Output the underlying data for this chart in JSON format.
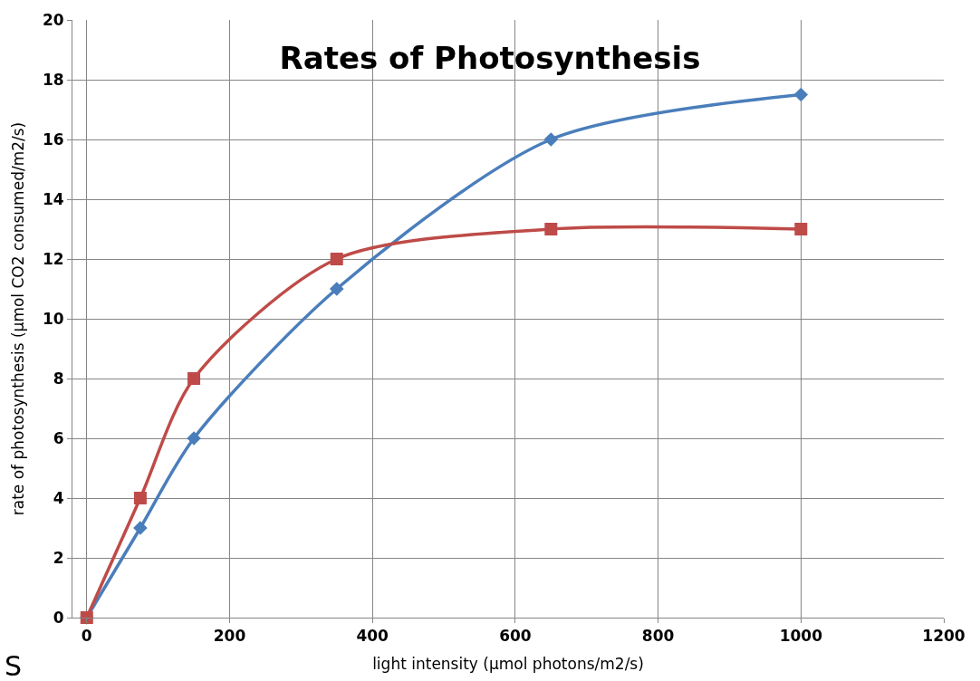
{
  "chart_data": {
    "type": "line",
    "title": "Rates of Photosynthesis",
    "xlabel": "light intensity (µmol photons/m2/s)",
    "ylabel": "rate of photosynthesis (µmol CO2 consumed/m2/s)",
    "series": [
      {
        "color": "#4a7ebb",
        "marker": "diamond",
        "x": [
          0,
          75,
          150,
          350,
          650,
          1000
        ],
        "values": [
          0,
          3,
          6,
          11,
          16,
          17.5
        ]
      },
      {
        "color": "#be4b48",
        "marker": "square",
        "x": [
          0,
          75,
          150,
          350,
          650,
          1000
        ],
        "values": [
          0,
          4,
          8,
          12,
          13,
          13
        ]
      }
    ],
    "xlim": [
      -20,
      1200
    ],
    "xticks": [
      0,
      200,
      400,
      600,
      800,
      1000,
      1200
    ],
    "ylim": [
      0,
      20
    ],
    "yticks": [
      0,
      2,
      4,
      6,
      8,
      10,
      12,
      14,
      16,
      18,
      20
    ],
    "grid": true,
    "line_style": "solid",
    "annotations": [
      "S"
    ]
  }
}
